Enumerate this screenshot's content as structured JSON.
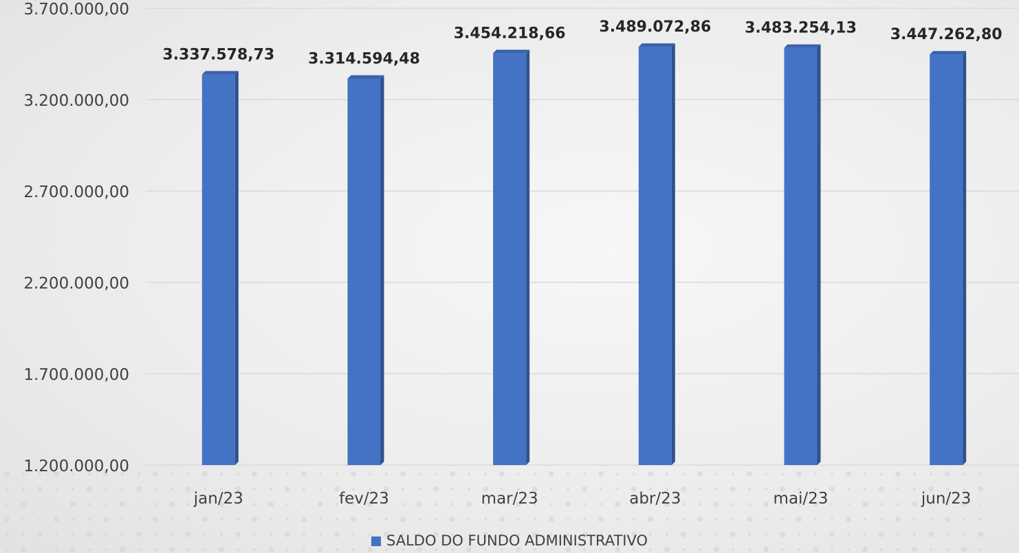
{
  "chart_data": {
    "type": "bar",
    "categories": [
      "jan/23",
      "fev/23",
      "mar/23",
      "abr/23",
      "mai/23",
      "jun/23"
    ],
    "series": [
      {
        "name": "SALDO DO FUNDO ADMINISTRATIVO",
        "values": [
          3337578.73,
          3314594.48,
          3454218.66,
          3489072.86,
          3483254.13,
          3447262.8
        ],
        "labels": [
          "3.337.578,73",
          "3.314.594,48",
          "3.454.218,66",
          "3.489.072,86",
          "3.483.254,13",
          "3.447.262,80"
        ],
        "color": "#4472C4"
      }
    ],
    "yticks": [
      1200000,
      1700000,
      2200000,
      2700000,
      3200000,
      3700000
    ],
    "ytick_labels": [
      "1.200.000,00",
      "1.700.000,00",
      "2.200.000,00",
      "2.700.000,00",
      "3.200.000,00",
      "3.700.000,00"
    ],
    "ylim": [
      1200000,
      3700000
    ],
    "grid": true,
    "legend_position": "bottom",
    "title": "",
    "xlabel": "",
    "ylabel": ""
  }
}
